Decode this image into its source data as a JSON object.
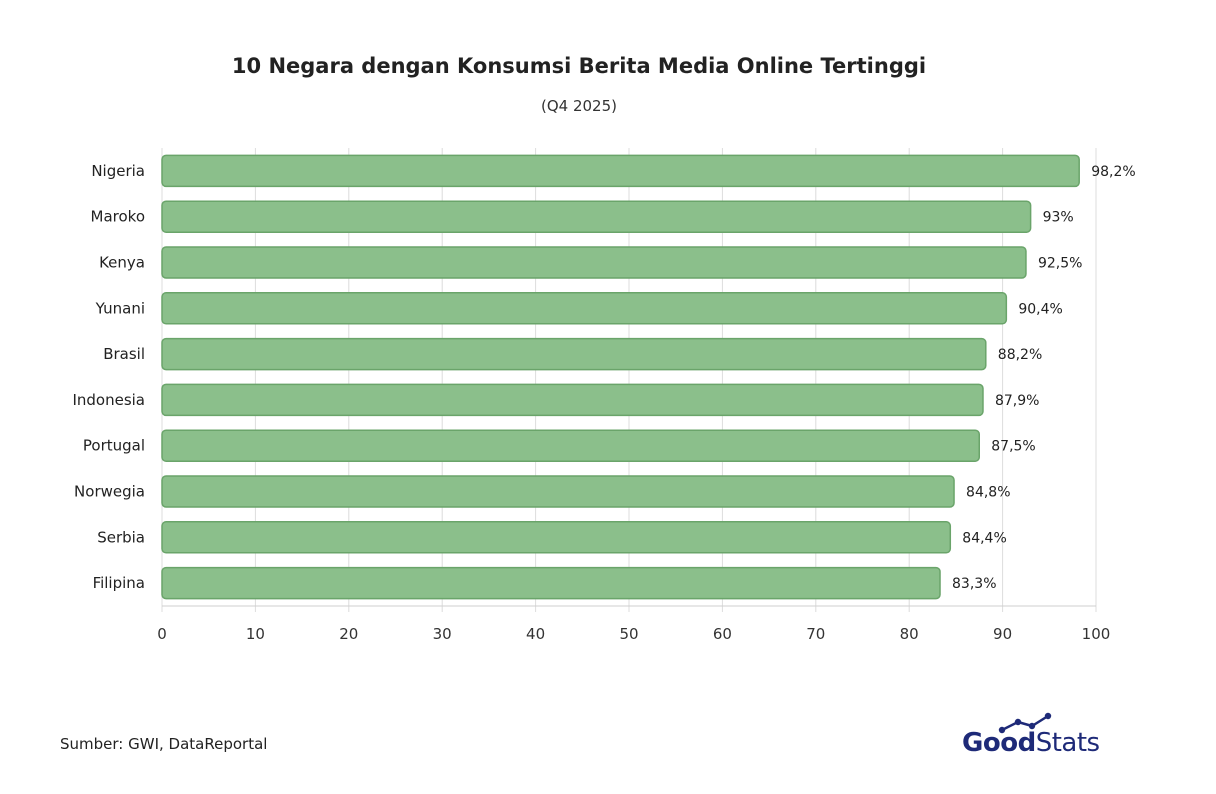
{
  "chart_data": {
    "type": "bar",
    "orientation": "horizontal",
    "title": "10 Negara dengan Konsumsi Berita Media Online Tertinggi",
    "subtitle": "(Q4 2025)",
    "categories": [
      "Nigeria",
      "Maroko",
      "Kenya",
      "Yunani",
      "Brasil",
      "Indonesia",
      "Portugal",
      "Norwegia",
      "Serbia",
      "Filipina"
    ],
    "values": [
      98.2,
      93,
      92.5,
      90.4,
      88.2,
      87.9,
      87.5,
      84.8,
      84.4,
      83.3
    ],
    "value_labels": [
      "98,2%",
      "93%",
      "92,5%",
      "90,4%",
      "88,2%",
      "87,9%",
      "87,5%",
      "84,8%",
      "84,4%",
      "83,3%"
    ],
    "xlim": [
      0,
      100
    ],
    "xticks": [
      0,
      10,
      20,
      30,
      40,
      50,
      60,
      70,
      80,
      90,
      100
    ],
    "grid": true,
    "bar_color": "#8bbf8b",
    "bar_edge_color": "#6aa46a"
  },
  "source": "Sumber: GWI, DataReportal",
  "logo": {
    "good": "Good",
    "stats": "Stats",
    "color": "#1e2a78"
  }
}
